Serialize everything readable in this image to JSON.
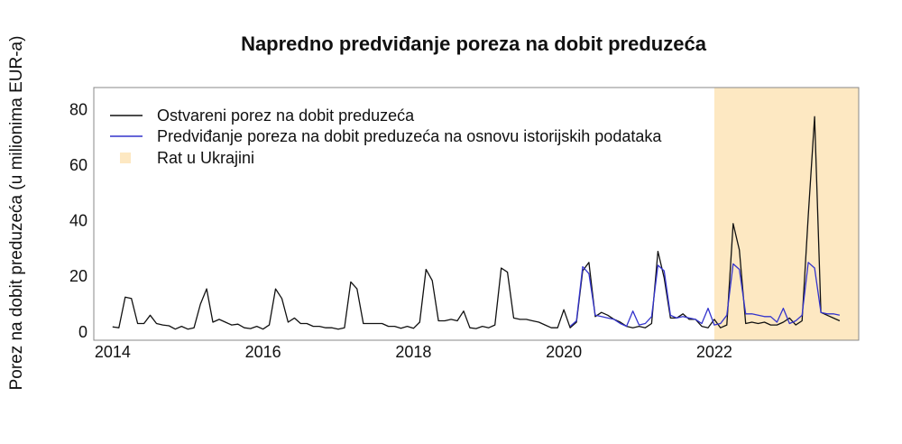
{
  "chart_data": {
    "type": "line",
    "title": "Napredno predviđanje poreza na dobit preduzeća",
    "ylabel": "Porez na dobit preduzeća (u milionima EUR-a)",
    "xlabel": "",
    "xlim": [
      2013.75,
      2023.92
    ],
    "ylim": [
      -3,
      88
    ],
    "x_ticks": [
      2014,
      2016,
      2018,
      2020,
      2022
    ],
    "x_tick_labels": [
      "2014",
      "2016",
      "2018",
      "2020",
      "2022"
    ],
    "y_ticks": [
      0,
      20,
      40,
      60,
      80
    ],
    "y_tick_labels": [
      "0",
      "20",
      "40",
      "60",
      "80"
    ],
    "grid": false,
    "legend_position": "top-left",
    "shaded_region": {
      "name": "Rat u Ukrajini",
      "x_start": 2022.0,
      "x_end": 2023.92,
      "color": "#fde8c2"
    },
    "series": [
      {
        "name": "Ostvareni porez na dobit preduzeća",
        "color": "#111111",
        "points": [
          [
            2014.0,
            1.8
          ],
          [
            2014.083,
            1.5
          ],
          [
            2014.167,
            12.5
          ],
          [
            2014.25,
            12.0
          ],
          [
            2014.333,
            3.0
          ],
          [
            2014.417,
            3.0
          ],
          [
            2014.5,
            6.0
          ],
          [
            2014.583,
            3.0
          ],
          [
            2014.667,
            2.5
          ],
          [
            2014.75,
            2.2
          ],
          [
            2014.833,
            1.0
          ],
          [
            2014.917,
            2.0
          ],
          [
            2015.0,
            1.0
          ],
          [
            2015.083,
            1.5
          ],
          [
            2015.167,
            10.0
          ],
          [
            2015.25,
            15.5
          ],
          [
            2015.333,
            3.5
          ],
          [
            2015.417,
            4.5
          ],
          [
            2015.5,
            3.5
          ],
          [
            2015.583,
            2.5
          ],
          [
            2015.667,
            2.8
          ],
          [
            2015.75,
            1.5
          ],
          [
            2015.833,
            1.2
          ],
          [
            2015.917,
            2.0
          ],
          [
            2016.0,
            1.0
          ],
          [
            2016.083,
            2.5
          ],
          [
            2016.167,
            15.5
          ],
          [
            2016.25,
            12.0
          ],
          [
            2016.333,
            3.5
          ],
          [
            2016.417,
            5.0
          ],
          [
            2016.5,
            3.0
          ],
          [
            2016.583,
            3.0
          ],
          [
            2016.667,
            2.0
          ],
          [
            2016.75,
            2.0
          ],
          [
            2016.833,
            1.5
          ],
          [
            2016.917,
            1.5
          ],
          [
            2017.0,
            1.0
          ],
          [
            2017.083,
            1.5
          ],
          [
            2017.167,
            18.0
          ],
          [
            2017.25,
            15.5
          ],
          [
            2017.333,
            3.0
          ],
          [
            2017.417,
            3.0
          ],
          [
            2017.5,
            3.0
          ],
          [
            2017.583,
            3.0
          ],
          [
            2017.667,
            2.0
          ],
          [
            2017.75,
            2.0
          ],
          [
            2017.833,
            1.3
          ],
          [
            2017.917,
            2.0
          ],
          [
            2018.0,
            1.3
          ],
          [
            2018.083,
            3.5
          ],
          [
            2018.167,
            22.5
          ],
          [
            2018.25,
            18.5
          ],
          [
            2018.333,
            4.0
          ],
          [
            2018.417,
            4.0
          ],
          [
            2018.5,
            4.5
          ],
          [
            2018.583,
            4.0
          ],
          [
            2018.667,
            7.5
          ],
          [
            2018.75,
            1.5
          ],
          [
            2018.833,
            1.2
          ],
          [
            2018.917,
            2.0
          ],
          [
            2019.0,
            1.5
          ],
          [
            2019.083,
            2.5
          ],
          [
            2019.167,
            23.0
          ],
          [
            2019.25,
            21.5
          ],
          [
            2019.333,
            5.0
          ],
          [
            2019.417,
            4.5
          ],
          [
            2019.5,
            4.5
          ],
          [
            2019.583,
            4.0
          ],
          [
            2019.667,
            3.5
          ],
          [
            2019.75,
            2.5
          ],
          [
            2019.833,
            1.5
          ],
          [
            2019.917,
            1.5
          ],
          [
            2020.0,
            8.0
          ],
          [
            2020.083,
            1.5
          ],
          [
            2020.167,
            3.5
          ],
          [
            2020.25,
            22.0
          ],
          [
            2020.333,
            25.0
          ],
          [
            2020.417,
            5.5
          ],
          [
            2020.5,
            7.0
          ],
          [
            2020.583,
            6.0
          ],
          [
            2020.667,
            4.5
          ],
          [
            2020.75,
            3.5
          ],
          [
            2020.833,
            2.0
          ],
          [
            2020.917,
            1.5
          ],
          [
            2021.0,
            2.0
          ],
          [
            2021.083,
            1.5
          ],
          [
            2021.167,
            3.0
          ],
          [
            2021.25,
            29.0
          ],
          [
            2021.333,
            19.5
          ],
          [
            2021.417,
            5.0
          ],
          [
            2021.5,
            5.0
          ],
          [
            2021.583,
            6.5
          ],
          [
            2021.667,
            4.5
          ],
          [
            2021.75,
            4.5
          ],
          [
            2021.833,
            2.0
          ],
          [
            2021.917,
            1.5
          ],
          [
            2022.0,
            4.5
          ],
          [
            2022.083,
            1.5
          ],
          [
            2022.167,
            2.5
          ],
          [
            2022.25,
            39.0
          ],
          [
            2022.333,
            29.5
          ],
          [
            2022.417,
            3.0
          ],
          [
            2022.5,
            3.5
          ],
          [
            2022.583,
            3.0
          ],
          [
            2022.667,
            3.5
          ],
          [
            2022.75,
            2.5
          ],
          [
            2022.833,
            2.5
          ],
          [
            2022.917,
            3.5
          ],
          [
            2023.0,
            5.0
          ],
          [
            2023.083,
            2.5
          ],
          [
            2023.167,
            4.0
          ],
          [
            2023.25,
            42.0
          ],
          [
            2023.333,
            77.5
          ],
          [
            2023.417,
            7.0
          ],
          [
            2023.5,
            6.0
          ],
          [
            2023.583,
            5.0
          ],
          [
            2023.667,
            4.0
          ]
        ]
      },
      {
        "name": "Predviđanje poreza na dobit preduzeća na osnovu istorijskih podataka",
        "color": "#3333cc",
        "points": [
          [
            2020.083,
            2.0
          ],
          [
            2020.167,
            4.0
          ],
          [
            2020.25,
            23.5
          ],
          [
            2020.333,
            21.0
          ],
          [
            2020.417,
            6.0
          ],
          [
            2020.5,
            5.5
          ],
          [
            2020.583,
            5.0
          ],
          [
            2020.667,
            4.5
          ],
          [
            2020.75,
            3.0
          ],
          [
            2020.833,
            2.0
          ],
          [
            2020.917,
            7.5
          ],
          [
            2021.0,
            2.5
          ],
          [
            2021.083,
            3.0
          ],
          [
            2021.167,
            5.5
          ],
          [
            2021.25,
            24.0
          ],
          [
            2021.333,
            22.0
          ],
          [
            2021.417,
            6.0
          ],
          [
            2021.5,
            5.0
          ],
          [
            2021.583,
            5.5
          ],
          [
            2021.667,
            5.0
          ],
          [
            2021.75,
            4.5
          ],
          [
            2021.833,
            3.0
          ],
          [
            2021.917,
            8.5
          ],
          [
            2022.0,
            2.5
          ],
          [
            2022.083,
            3.0
          ],
          [
            2022.167,
            6.0
          ],
          [
            2022.25,
            24.5
          ],
          [
            2022.333,
            22.5
          ],
          [
            2022.417,
            6.5
          ],
          [
            2022.5,
            6.5
          ],
          [
            2022.583,
            6.0
          ],
          [
            2022.667,
            5.5
          ],
          [
            2022.75,
            5.5
          ],
          [
            2022.833,
            3.5
          ],
          [
            2022.917,
            8.5
          ],
          [
            2023.0,
            3.0
          ],
          [
            2023.083,
            4.0
          ],
          [
            2023.167,
            6.0
          ],
          [
            2023.25,
            25.0
          ],
          [
            2023.333,
            23.0
          ],
          [
            2023.417,
            7.0
          ],
          [
            2023.5,
            6.5
          ],
          [
            2023.583,
            6.5
          ],
          [
            2023.667,
            6.0
          ]
        ]
      }
    ]
  }
}
